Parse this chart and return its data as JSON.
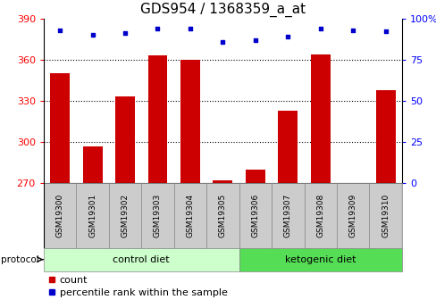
{
  "title": "GDS954 / 1368359_a_at",
  "samples": [
    "GSM19300",
    "GSM19301",
    "GSM19302",
    "GSM19303",
    "GSM19304",
    "GSM19305",
    "GSM19306",
    "GSM19307",
    "GSM19308",
    "GSM19309",
    "GSM19310"
  ],
  "counts": [
    350,
    297,
    333,
    363,
    360,
    272,
    280,
    323,
    364,
    270,
    338
  ],
  "percentile_ranks": [
    93,
    90,
    91,
    94,
    94,
    86,
    87,
    89,
    94,
    93,
    92
  ],
  "ylim_left": [
    270,
    390
  ],
  "ylim_right": [
    0,
    100
  ],
  "yticks_left": [
    270,
    300,
    330,
    360,
    390
  ],
  "yticks_right": [
    0,
    25,
    50,
    75,
    100
  ],
  "ytick_right_labels": [
    "0",
    "25",
    "50",
    "75",
    "100%"
  ],
  "groups": [
    {
      "label": "control diet",
      "indices": [
        0,
        1,
        2,
        3,
        4,
        5
      ],
      "color": "#ccffcc"
    },
    {
      "label": "ketogenic diet",
      "indices": [
        6,
        7,
        8,
        9,
        10
      ],
      "color": "#55dd55"
    }
  ],
  "bar_color": "#cc0000",
  "dot_color": "#0000cc",
  "bar_width": 0.6,
  "plot_bg_color": "#ffffff",
  "tick_label_bg": "#cccccc",
  "protocol_label": "protocol",
  "legend_count_label": "count",
  "legend_pct_label": "percentile rank within the sample",
  "title_fontsize": 11,
  "axis_fontsize": 8,
  "tick_fontsize": 7,
  "legend_fontsize": 8,
  "sample_fontsize": 6.5
}
